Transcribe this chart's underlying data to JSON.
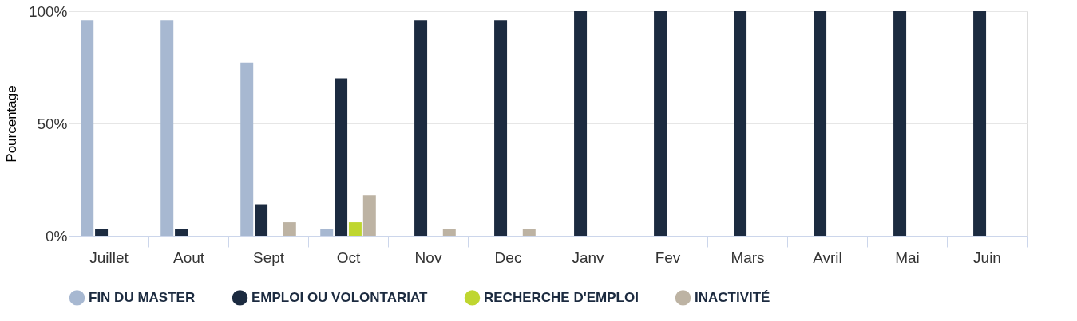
{
  "chart_data": {
    "type": "bar",
    "ylabel": "Pourcentage",
    "categories": [
      "Juillet",
      "Aout",
      "Sept",
      "Oct",
      "Nov",
      "Dec",
      "Janv",
      "Fev",
      "Mars",
      "Avril",
      "Mai",
      "Juin"
    ],
    "series": [
      {
        "name": "FIN DU MASTER",
        "color": "#a7b8d1",
        "values": [
          96,
          96,
          77,
          3,
          null,
          null,
          null,
          null,
          null,
          null,
          null,
          null
        ]
      },
      {
        "name": "EMPLOI OU VOLONTARIAT",
        "color": "#1c2b40",
        "values": [
          3,
          3,
          14,
          70,
          96,
          96,
          100,
          100,
          100,
          100,
          100,
          100
        ]
      },
      {
        "name": "RECHERCHE D'EMPLOI",
        "color": "#bfd630",
        "values": [
          null,
          null,
          null,
          6,
          null,
          null,
          null,
          null,
          null,
          null,
          null,
          null
        ]
      },
      {
        "name": "INACTIVITÉ",
        "color": "#bdb3a3",
        "values": [
          null,
          null,
          6,
          18,
          3,
          3,
          null,
          null,
          null,
          null,
          null,
          null
        ]
      }
    ],
    "ylim": [
      0,
      100
    ],
    "yticks": [
      {
        "value": 0,
        "label": "0%"
      },
      {
        "value": 50,
        "label": "50%"
      },
      {
        "value": 100,
        "label": "100%"
      }
    ],
    "grid": "y",
    "legend": "bottom"
  }
}
